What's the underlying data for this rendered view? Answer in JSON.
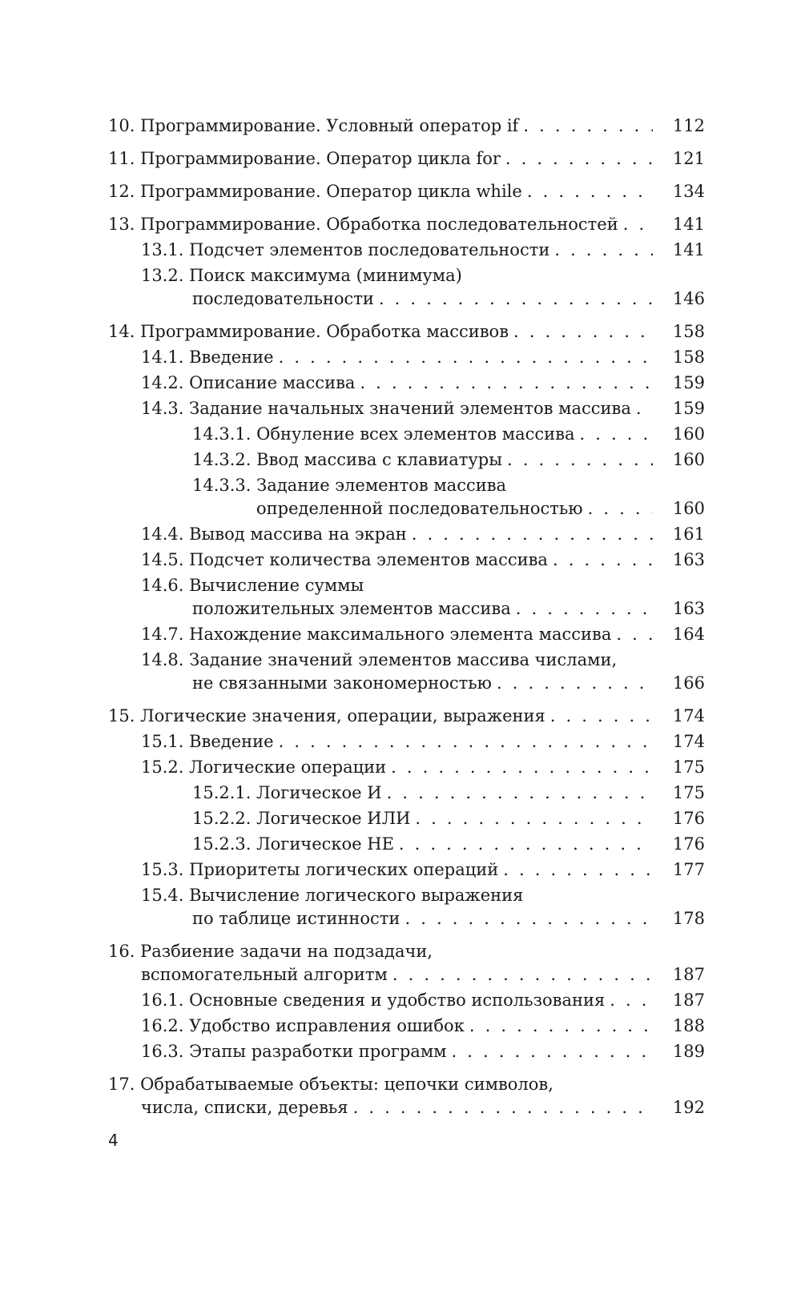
{
  "toc": [
    {
      "level": 1,
      "lines": [
        "10. Программирование. Условный оператор if"
      ],
      "page": "112"
    },
    {
      "level": 1,
      "lines": [
        "11. Программирование. Оператор цикла for"
      ],
      "page": "121"
    },
    {
      "level": 1,
      "lines": [
        "12. Программирование. Оператор цикла while"
      ],
      "page": "134"
    },
    {
      "level": 1,
      "lines": [
        "13. Программирование. Обработка последовательностей"
      ],
      "page": "141"
    },
    {
      "level": 2,
      "lines": [
        "13.1. Подсчет элементов последовательности"
      ],
      "page": "141"
    },
    {
      "level": 2,
      "lines": [
        "13.2. Поиск максимума (минимума)",
        "последовательности"
      ],
      "page": "146"
    },
    {
      "level": 1,
      "lines": [
        "14. Программирование. Обработка массивов"
      ],
      "page": "158"
    },
    {
      "level": 2,
      "lines": [
        "14.1. Введение"
      ],
      "page": "158"
    },
    {
      "level": 2,
      "lines": [
        "14.2. Описание массива"
      ],
      "page": "159"
    },
    {
      "level": 2,
      "lines": [
        "14.3. Задание начальных значений элементов массива"
      ],
      "page": "159"
    },
    {
      "level": 3,
      "lines": [
        "14.3.1. Обнуление всех элементов массива"
      ],
      "page": "160"
    },
    {
      "level": 3,
      "lines": [
        "14.3.2. Ввод массива с клавиатуры"
      ],
      "page": "160"
    },
    {
      "level": 3,
      "lines": [
        "14.3.3. Задание элементов массива",
        "определенной последовательностью"
      ],
      "page": "160"
    },
    {
      "level": 2,
      "lines": [
        "14.4. Вывод массива на экран"
      ],
      "page": "161"
    },
    {
      "level": 2,
      "lines": [
        "14.5. Подсчет количества элементов массива"
      ],
      "page": "163"
    },
    {
      "level": 2,
      "lines": [
        "14.6. Вычисление суммы",
        "положительных элементов массива"
      ],
      "page": "163"
    },
    {
      "level": 2,
      "lines": [
        "14.7. Нахождение максимального элемента массива"
      ],
      "page": "164"
    },
    {
      "level": 2,
      "lines": [
        "14.8. Задание значений элементов массива числами,",
        "не связанными закономерностью"
      ],
      "page": "166"
    },
    {
      "level": 1,
      "lines": [
        "15. Логические значения, операции, выражения"
      ],
      "page": "174"
    },
    {
      "level": 2,
      "lines": [
        "15.1. Введение"
      ],
      "page": "174"
    },
    {
      "level": 2,
      "lines": [
        "15.2. Логические операции"
      ],
      "page": "175"
    },
    {
      "level": 3,
      "lines": [
        "15.2.1. Логическое И"
      ],
      "page": "175"
    },
    {
      "level": 3,
      "lines": [
        "15.2.2. Логическое ИЛИ"
      ],
      "page": "176"
    },
    {
      "level": 3,
      "lines": [
        "15.2.3. Логическое НЕ"
      ],
      "page": "176"
    },
    {
      "level": 2,
      "lines": [
        "15.3. Приоритеты логических операций"
      ],
      "page": "177"
    },
    {
      "level": 2,
      "lines": [
        "15.4. Вычисление логического выражения",
        "по таблице истинности"
      ],
      "page": "178"
    },
    {
      "level": 1,
      "lines": [
        "16. Разбиение задачи на подзадачи,",
        "вспомогательный алгоритм"
      ],
      "page": "187"
    },
    {
      "level": 2,
      "lines": [
        "16.1. Основные сведения и удобство использования"
      ],
      "page": "187"
    },
    {
      "level": 2,
      "lines": [
        "16.2. Удобство исправления ошибок"
      ],
      "page": "188"
    },
    {
      "level": 2,
      "lines": [
        "16.3. Этапы разработки программ"
      ],
      "page": "189"
    },
    {
      "level": 1,
      "lines": [
        "17. Обрабатываемые объекты: цепочки символов,",
        "числа, списки, деревья"
      ],
      "page": "192"
    }
  ],
  "folio": "4"
}
